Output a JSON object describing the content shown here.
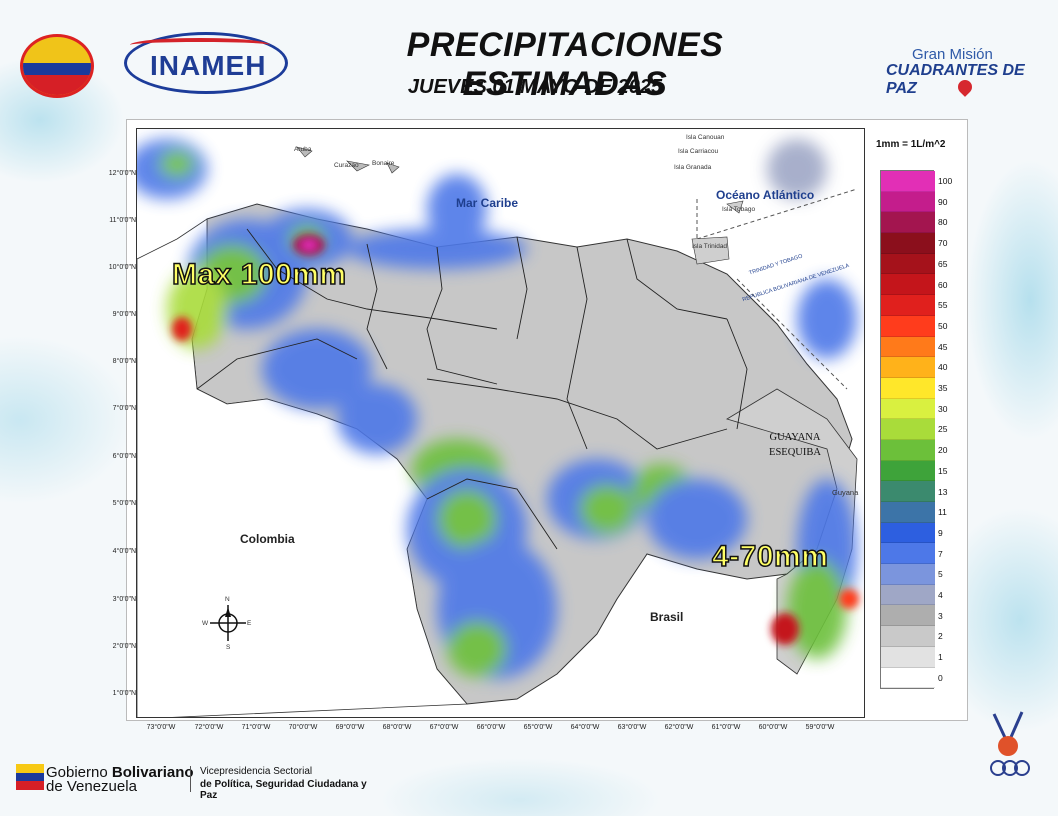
{
  "header": {
    "title": "PRECIPITACIONES ESTIMADAS",
    "date": "JUEVES 01 MAYO DE 2025",
    "inameh_logo": "INAMEH",
    "gran_mision_small": "Gran Misión",
    "gran_mision_big": "CUADRANTES DE PAZ"
  },
  "map": {
    "lat_labels": [
      "12°0'0\"N",
      "11°0'0\"N",
      "10°0'0\"N",
      "9°0'0\"N",
      "8°0'0\"N",
      "7°0'0\"N",
      "6°0'0\"N",
      "5°0'0\"N",
      "4°0'0\"N",
      "3°0'0\"N",
      "2°0'0\"N",
      "1°0'0\"N"
    ],
    "lon_labels": [
      "73°0'0\"W",
      "72°0'0\"W",
      "71°0'0\"W",
      "70°0'0\"W",
      "69°0'0\"W",
      "68°0'0\"W",
      "67°0'0\"W",
      "66°0'0\"W",
      "65°0'0\"W",
      "64°0'0\"W",
      "63°0'0\"W",
      "62°0'0\"W",
      "61°0'0\"W",
      "60°0'0\"W",
      "59°0'0\"W"
    ],
    "places": {
      "mar_caribe": "Mar Caribe",
      "oceano": "Océano Atlántico",
      "colombia": "Colombia",
      "brasil": "Brasil",
      "guyana": "Guyana",
      "guayana_1": "GUAYANA",
      "guayana_2": "ESEQUIBA"
    },
    "islands": {
      "aruba": "Aruba",
      "curazao": "Curazao",
      "bonaire": "Bonaire",
      "canouan": "Isla Canouan",
      "carriacou": "Isla Carriacou",
      "granada": "Isla Granada",
      "tobago": "Isla Tobago",
      "trinidad": "Isla Trinidad"
    },
    "border_labels": {
      "tt": "TRINIDAD Y TOBAGO",
      "rbv": "REPUBLICA BOLIVARIANA DE VENEZUELA"
    },
    "annotations": {
      "max": "Max 100mm",
      "range": "4-70mm"
    }
  },
  "legend": {
    "units": "1mm = 1L/m^2",
    "levels": [
      {
        "label": "100",
        "color": "#e22fb6"
      },
      {
        "label": "90",
        "color": "#c41d8c"
      },
      {
        "label": "80",
        "color": "#a3154f"
      },
      {
        "label": "70",
        "color": "#8b0f1c"
      },
      {
        "label": "65",
        "color": "#a5121b"
      },
      {
        "label": "60",
        "color": "#c4151b"
      },
      {
        "label": "55",
        "color": "#e0201d"
      },
      {
        "label": "50",
        "color": "#ff3c1c"
      },
      {
        "label": "45",
        "color": "#ff7a1a"
      },
      {
        "label": "40",
        "color": "#ffb21a"
      },
      {
        "label": "35",
        "color": "#ffe72a"
      },
      {
        "label": "30",
        "color": "#d9f040"
      },
      {
        "label": "25",
        "color": "#a9dc3a"
      },
      {
        "label": "20",
        "color": "#6cc03a"
      },
      {
        "label": "15",
        "color": "#3ea33a"
      },
      {
        "label": "13",
        "color": "#3b8a6e"
      },
      {
        "label": "11",
        "color": "#3c74a8"
      },
      {
        "label": "9",
        "color": "#2d5fe0"
      },
      {
        "label": "7",
        "color": "#4d78e8"
      },
      {
        "label": "5",
        "color": "#7b95dd"
      },
      {
        "label": "4",
        "color": "#9fa7c6"
      },
      {
        "label": "3",
        "color": "#aeaeae"
      },
      {
        "label": "2",
        "color": "#c9c9c9"
      },
      {
        "label": "1",
        "color": "#e2e2e2"
      },
      {
        "label": "0",
        "color": "#ffffff"
      }
    ]
  },
  "compass": {
    "n": "N",
    "s": "S",
    "e": "E",
    "w": "W"
  },
  "footer": {
    "gob_1a": "Gobierno ",
    "gob_1b": "Bolivariano",
    "gob_2": "de Venezuela",
    "vice_1": "Vicepresidencia Sectorial",
    "vice_2": "de Política, Seguridad Ciudadana y Paz"
  }
}
